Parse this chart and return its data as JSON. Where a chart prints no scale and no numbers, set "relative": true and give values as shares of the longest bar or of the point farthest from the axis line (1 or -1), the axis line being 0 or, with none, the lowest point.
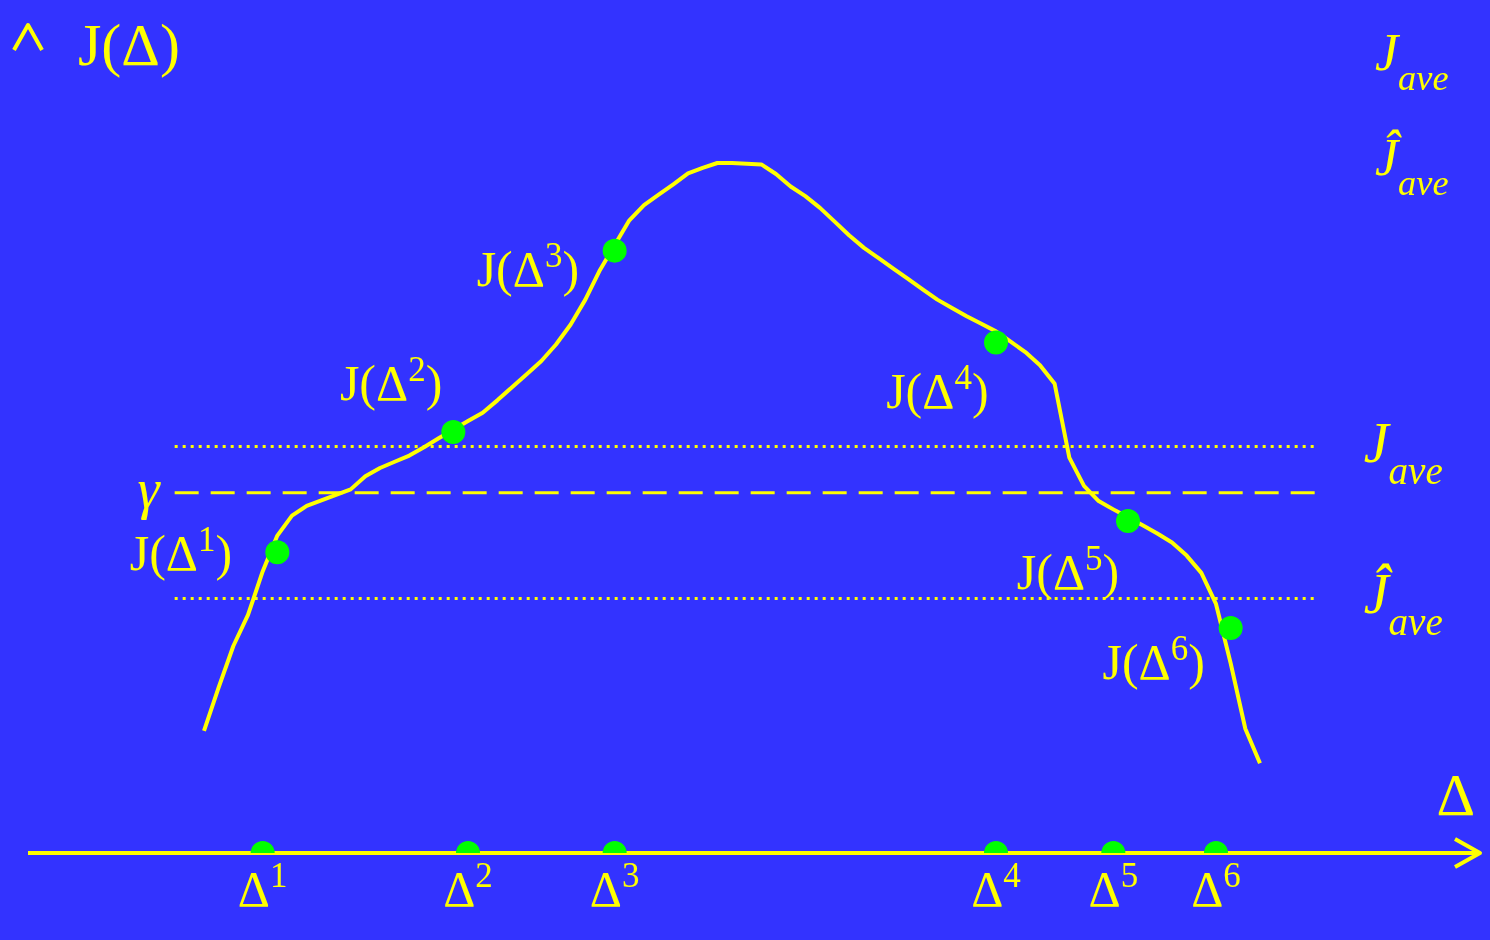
{
  "chart_data": {
    "type": "line",
    "relative": true,
    "xlabel": "Δ",
    "ylabel": "J(Δ)",
    "categories": [
      null,
      null,
      null,
      null,
      null,
      null,
      null,
      null,
      null,
      null,
      null,
      null,
      null,
      null,
      null,
      null,
      "Δ$^{1}$",
      null,
      null,
      null,
      null,
      null,
      null,
      null,
      null,
      null,
      null,
      null,
      null,
      null,
      "Δ$^{2}$",
      null,
      null,
      null,
      null,
      null,
      null,
      null,
      null,
      null,
      "Δ$^{3}$",
      null,
      null,
      null,
      null,
      null,
      null,
      null,
      null,
      null,
      null,
      null,
      null,
      null,
      null,
      null,
      null,
      null,
      null,
      null,
      null,
      null,
      null,
      null,
      null,
      null,
      "Δ$^{4}$",
      null,
      null,
      null,
      null,
      null,
      null,
      null,
      "Δ$^{5}$",
      null,
      null,
      null,
      null,
      null,
      null,
      "Δ$^{6}$",
      null,
      null,
      null,
      null,
      null,
      null,
      null,
      null,
      null,
      null,
      null,
      null,
      null,
      null,
      null,
      null,
      null,
      null
    ],
    "tick_labels": "x",
    "series": [
      {
        "type": "line",
        "color": "#ffff00",
        "marker": "none",
        "line_style": "solid",
        "values": [
          null,
          null,
          null,
          null,
          null,
          null,
          null,
          null,
          null,
          null,
          null,
          null,
          0.177,
          0.24,
          0.3,
          0.345,
          0.408,
          0.46,
          0.489,
          0.503,
          0.511,
          0.519,
          0.527,
          0.546,
          0.558,
          0.567,
          0.576,
          0.588,
          0.601,
          null,
          0.626,
          0.638,
          0.656,
          0.675,
          0.694,
          0.713,
          0.737,
          0.766,
          0.802,
          0.845,
          null,
          0.917,
          0.939,
          0.954,
          0.969,
          0.985,
          0.993,
          1,
          1,
          0.999,
          0.998,
          0.984,
          0.966,
          0.952,
          0.935,
          0.915,
          0.895,
          0.877,
          0.862,
          0.847,
          0.832,
          0.817,
          0.802,
          0.79,
          0.778,
          0.767,
          0.756,
          0.741,
          0.726,
          0.707,
          0.68,
          0.573,
          0.532,
          0.51,
          0.498,
          null,
          0.475,
          0.463,
          0.45,
          0.431,
          0.406,
          0.361,
          0.275,
          0.18,
          0.13,
          null,
          null,
          null,
          null,
          null,
          null,
          null,
          null,
          null,
          null,
          null,
          null,
          null,
          null,
          null
        ]
      },
      {
        "type": "scatter",
        "color": "#00ff00",
        "marker": "circle",
        "values": [
          null,
          null,
          null,
          null,
          null,
          null,
          null,
          null,
          null,
          null,
          null,
          null,
          null,
          null,
          null,
          null,
          null,
          0.436,
          null,
          null,
          null,
          null,
          null,
          null,
          null,
          null,
          null,
          null,
          null,
          0.61,
          null,
          null,
          null,
          null,
          null,
          null,
          null,
          null,
          null,
          null,
          0.873,
          null,
          null,
          null,
          null,
          null,
          null,
          null,
          null,
          null,
          null,
          null,
          null,
          null,
          null,
          null,
          null,
          null,
          null,
          null,
          null,
          null,
          null,
          null,
          null,
          null,
          0.74,
          null,
          null,
          null,
          null,
          null,
          null,
          null,
          null,
          0.481,
          null,
          null,
          null,
          null,
          null,
          null,
          0.326,
          null,
          null,
          null,
          null,
          null,
          null,
          null,
          null,
          null,
          null,
          null,
          null,
          null,
          null,
          null,
          null,
          null
        ]
      },
      {
        "type": "scatter",
        "color": "#00ff00",
        "marker": "circle",
        "values": [
          null,
          null,
          null,
          null,
          null,
          null,
          null,
          null,
          null,
          null,
          null,
          null,
          null,
          null,
          null,
          null,
          0,
          null,
          null,
          null,
          null,
          null,
          null,
          null,
          null,
          null,
          null,
          null,
          null,
          null,
          0,
          null,
          null,
          null,
          null,
          null,
          null,
          null,
          null,
          null,
          0,
          null,
          null,
          null,
          null,
          null,
          null,
          null,
          null,
          null,
          null,
          null,
          null,
          null,
          null,
          null,
          null,
          null,
          null,
          null,
          null,
          null,
          null,
          null,
          null,
          null,
          0,
          null,
          null,
          null,
          null,
          null,
          null,
          null,
          0,
          null,
          null,
          null,
          null,
          null,
          null,
          0,
          null,
          null,
          null,
          null,
          null,
          null,
          null,
          null,
          null,
          null,
          null,
          null,
          null,
          null,
          null,
          null,
          null,
          null
        ]
      }
    ],
    "ref_lines": [
      {
        "axis": "y",
        "value": 0.589,
        "label": "J$_{ave}$",
        "color": "#ffff00",
        "line_style": "dotted"
      },
      {
        "axis": "y",
        "value": 0.522,
        "label": "γ",
        "color": "#ffff00",
        "line_style": "dashed"
      },
      {
        "axis": "y",
        "value": 0.369,
        "label": "Ĵ$_{ave}$",
        "color": "#ffff00",
        "line_style": "dotted"
      }
    ],
    "annotations": [
      "J(Δ$^{1}$)",
      "J(Δ$^{2}$)",
      "J(Δ$^{3}$)",
      "J(Δ$^{4}$)",
      "J(Δ$^{5}$)",
      "J(Δ$^{6}$)",
      "J$_{ave}$",
      "Ĵ$_{ave}$"
    ]
  }
}
